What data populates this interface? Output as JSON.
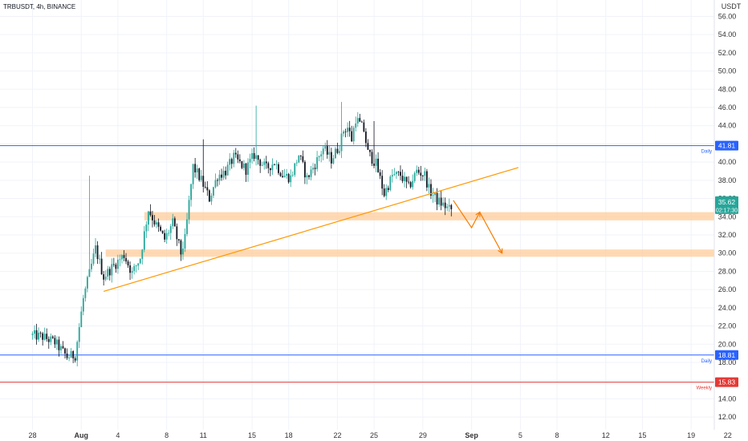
{
  "header": {
    "symbol_label": "TRBUSDT, 4h, BINANCE"
  },
  "colors": {
    "up": "#26a69a",
    "down": "#131722",
    "support_zone": "#ffcc99",
    "trendline": "#ff9800",
    "arrow": "#f57c00",
    "daily_line": "#2962ff",
    "weekly_line": "#e53935",
    "current_price": "#26a69a",
    "grid": "#f0f3fa"
  },
  "chart_data": {
    "type": "candlestick",
    "title": "TRBUSDT, 4h, BINANCE",
    "y_axis": {
      "unit_label": "USDT",
      "ylim": [
        10.6,
        57.8
      ],
      "ticks": [
        "12.00",
        "14.00",
        "16.00",
        "18.00",
        "20.00",
        "22.00",
        "24.00",
        "26.00",
        "28.00",
        "30.00",
        "32.00",
        "34.00",
        "36.00",
        "38.00",
        "40.00",
        "42.00",
        "44.00",
        "46.00",
        "48.00",
        "50.00",
        "52.00",
        "54.00",
        "56.00"
      ],
      "tick_values": [
        12,
        14,
        16,
        18,
        20,
        22,
        24,
        26,
        28,
        30,
        32,
        34,
        36,
        38,
        40,
        42,
        44,
        46,
        48,
        50,
        52,
        54,
        56
      ]
    },
    "x_axis": {
      "ticks": [
        {
          "label": "28",
          "bold": false,
          "index": 0
        },
        {
          "label": "Aug",
          "bold": true,
          "index": 24
        },
        {
          "label": "4",
          "bold": false,
          "index": 42
        },
        {
          "label": "8",
          "bold": false,
          "index": 66
        },
        {
          "label": "11",
          "bold": false,
          "index": 84
        },
        {
          "label": "15",
          "bold": false,
          "index": 108
        },
        {
          "label": "18",
          "bold": false,
          "index": 126
        },
        {
          "label": "22",
          "bold": false,
          "index": 150
        },
        {
          "label": "25",
          "bold": false,
          "index": 168
        },
        {
          "label": "29",
          "bold": false,
          "index": 192
        },
        {
          "label": "Sep",
          "bold": true,
          "index": 216
        },
        {
          "label": "5",
          "bold": false,
          "index": 240
        },
        {
          "label": "8",
          "bold": false,
          "index": 258
        },
        {
          "label": "12",
          "bold": false,
          "index": 282
        },
        {
          "label": "15",
          "bold": false,
          "index": 300
        },
        {
          "label": "19",
          "bold": false,
          "index": 324
        },
        {
          "label": "22",
          "bold": false,
          "index": 342
        }
      ]
    },
    "price_path": [
      [
        0,
        21.0
      ],
      [
        6,
        20.8
      ],
      [
        12,
        20.2
      ],
      [
        18,
        18.6
      ],
      [
        22,
        18.8
      ],
      [
        26,
        25.0
      ],
      [
        32,
        30.5
      ],
      [
        36,
        27.4
      ],
      [
        40,
        28.4
      ],
      [
        46,
        29.8
      ],
      [
        50,
        27.8
      ],
      [
        54,
        29.5
      ],
      [
        58,
        34.8
      ],
      [
        62,
        33.0
      ],
      [
        66,
        31.5
      ],
      [
        70,
        33.3
      ],
      [
        74,
        30.0
      ],
      [
        76,
        31.5
      ],
      [
        80,
        39.5
      ],
      [
        84,
        38.0
      ],
      [
        88,
        36.0
      ],
      [
        92,
        38.5
      ],
      [
        96,
        39.0
      ],
      [
        100,
        40.5
      ],
      [
        106,
        39.2
      ],
      [
        110,
        40.8
      ],
      [
        116,
        39.3
      ],
      [
        120,
        40.0
      ],
      [
        124,
        38.6
      ],
      [
        128,
        38.3
      ],
      [
        132,
        40.8
      ],
      [
        136,
        38.2
      ],
      [
        140,
        39.8
      ],
      [
        144,
        41.5
      ],
      [
        148,
        40.3
      ],
      [
        152,
        41.8
      ],
      [
        154,
        43.5
      ],
      [
        156,
        43.8
      ],
      [
        158,
        42.5
      ],
      [
        160,
        44.8
      ],
      [
        164,
        43.5
      ],
      [
        166,
        41.0
      ],
      [
        170,
        39.8
      ],
      [
        174,
        36.5
      ],
      [
        178,
        38.5
      ],
      [
        182,
        38.6
      ],
      [
        186,
        37.2
      ],
      [
        190,
        39.0
      ],
      [
        194,
        38.6
      ],
      [
        196,
        37.0
      ],
      [
        200,
        35.8
      ],
      [
        203,
        35.3
      ],
      [
        206,
        34.8
      ]
    ],
    "candle_count": 207,
    "current_price": {
      "value": 35.62,
      "label": "35.62",
      "countdown": "02:17:30"
    },
    "horizontal_lines": [
      {
        "value": 41.81,
        "label": "41.81",
        "tag": "Daily",
        "color": "#2962ff"
      },
      {
        "value": 18.81,
        "label": "18.81",
        "tag": "Daily",
        "color": "#2962ff"
      },
      {
        "value": 15.83,
        "label": "15.83",
        "tag": "Weekly",
        "color": "#e53935"
      }
    ],
    "zones": [
      {
        "low": 33.6,
        "high": 34.5,
        "start_index": 55
      },
      {
        "low": 29.6,
        "high": 30.4,
        "start_index": 36
      }
    ],
    "trendline": {
      "from": {
        "index": 35,
        "value": 25.8
      },
      "to": {
        "index": 239,
        "value": 39.4
      }
    },
    "projection_arrow": [
      {
        "index": 207,
        "value": 35.8
      },
      {
        "index": 216,
        "value": 32.8
      },
      {
        "index": 220,
        "value": 34.5
      },
      {
        "index": 231,
        "value": 30.0
      }
    ]
  }
}
